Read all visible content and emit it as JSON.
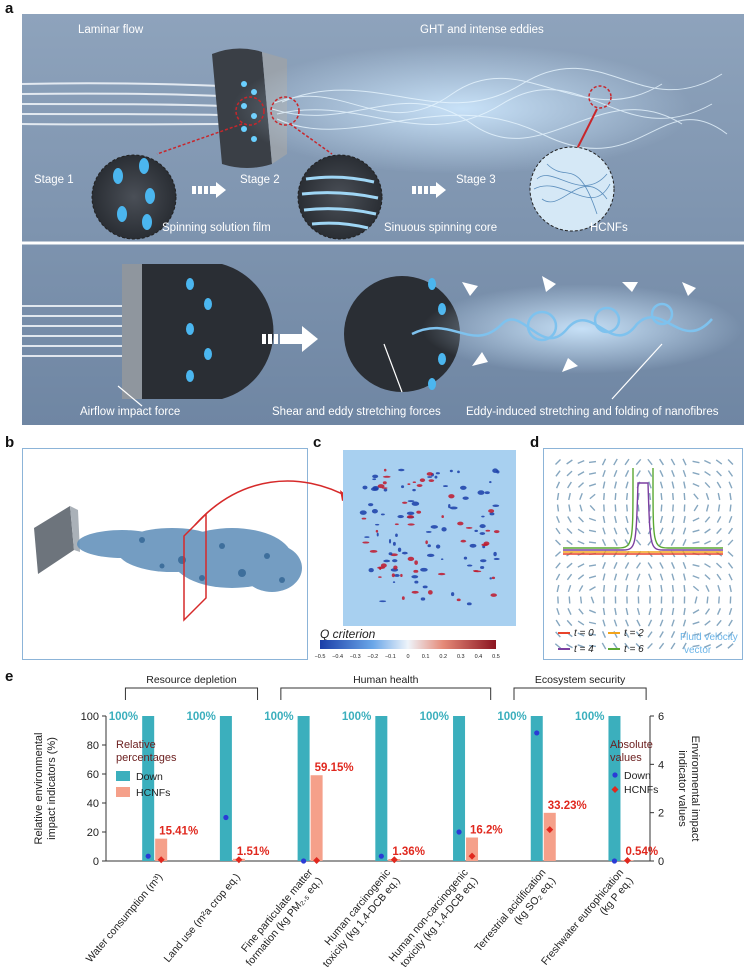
{
  "panels": {
    "a": "a",
    "b": "b",
    "c": "c",
    "d": "d",
    "e": "e"
  },
  "panel_a": {
    "laminar_flow": "Laminar flow",
    "ght": "GHT and intense eddies",
    "stage1": "Stage 1",
    "stage2": "Stage 2",
    "stage3": "Stage 3",
    "spinning_solution_film": "Spinning solution film",
    "sinuous_spinning_core": "Sinuous spinning core",
    "hcnfs": "HCNFs",
    "airflow_impact": "Airflow impact force",
    "shear_eddy": "Shear and eddy stretching forces",
    "eddy_induced": "Eddy-induced stretching and folding of nanofibres"
  },
  "panel_c": {
    "colorbar_title": "Q criterion",
    "ticks": [
      "−0.5",
      "−0.4",
      "−0.3",
      "−0.2",
      "−0.1",
      "0",
      "0.1",
      "0.2",
      "0.3",
      "0.4",
      "0.5"
    ]
  },
  "panel_d": {
    "legend": [
      "t = 0",
      "t = 2",
      "t = 4",
      "t = 6"
    ],
    "legend_colors": [
      "#e8432a",
      "#f2a31b",
      "#7b3fa0",
      "#5aa832"
    ],
    "fluid_label_1": "Fluid velocity",
    "fluid_label_2": "vector"
  },
  "chart_data": {
    "type": "bar",
    "groups": [
      "Resource depletion",
      "Human health",
      "Ecosystem security"
    ],
    "categories": [
      "Water consumption (m3)",
      "Land use (m2a crop eq.)",
      "Fine particulate matter formation (kg PM2.5 eq.)",
      "Human carcinogenic toxicity (kg 1,4-DCB eq.)",
      "Human non-carcinogenic toxicity (kg 1,4-DCB eq.)",
      "Terrestrial acidification (kg SO2 eq.)",
      "Freshwater eutrophication (kg P eq.)"
    ],
    "category_lines": [
      [
        "Water consumption (m³)"
      ],
      [
        "Land use (m²a crop eq.)"
      ],
      [
        "Fine particulate matter",
        "formation (kg PM₂.₅ eq.)"
      ],
      [
        "Human carcinogenic",
        "toxicity (kg 1,4-DCB eq.)"
      ],
      [
        "Human non-carcinogenic",
        "toxicity (kg 1,4-DCB eq.)"
      ],
      [
        "Terrestrial acidification",
        "(kg SO₂ eq.)"
      ],
      [
        "Freshwater eutrophication",
        "(kg P eq.)"
      ]
    ],
    "series": [
      {
        "name": "Down",
        "values": [
          100,
          100,
          100,
          100,
          100,
          100,
          100
        ],
        "labels": [
          "100%",
          "100%",
          "100%",
          "100%",
          "100%",
          "100%",
          "100%"
        ],
        "color": "#3bafbd"
      },
      {
        "name": "HCNFs",
        "values": [
          15.41,
          1.51,
          59.15,
          1.36,
          16.2,
          33.23,
          0.54
        ],
        "labels": [
          "15.41%",
          "1.51%",
          "59.15%",
          "1.36%",
          "16.2%",
          "33.23%",
          "0.54%"
        ],
        "color": "#f5a08a"
      }
    ],
    "absolute_values": {
      "Down": [
        0.2,
        1.8,
        0.0,
        0.2,
        1.2,
        5.3,
        0.0
      ],
      "HCNFs": [
        0.05,
        0.05,
        0.02,
        0.05,
        0.2,
        1.3,
        0.02
      ]
    },
    "ylabel_left": "Relative environmental impact indicators (%)",
    "ylabel_right": "Environmental impact indicator values",
    "ylim_left": [
      0,
      100
    ],
    "ylim_right": [
      0,
      6
    ],
    "yticks_left": [
      "0",
      "20",
      "40",
      "60",
      "80",
      "100"
    ],
    "yticks_right": [
      "0",
      "2",
      "4",
      "6"
    ],
    "legend_left_title": [
      "Relative",
      "percentages"
    ],
    "legend_right_title": [
      "Absolute",
      "values"
    ],
    "marker_colors": {
      "Down": "#2a3bd6",
      "HCNFs": "#e0281e"
    },
    "label_colors": {
      "Down": "#3bafbd",
      "HCNFs": "#e0281e"
    }
  }
}
